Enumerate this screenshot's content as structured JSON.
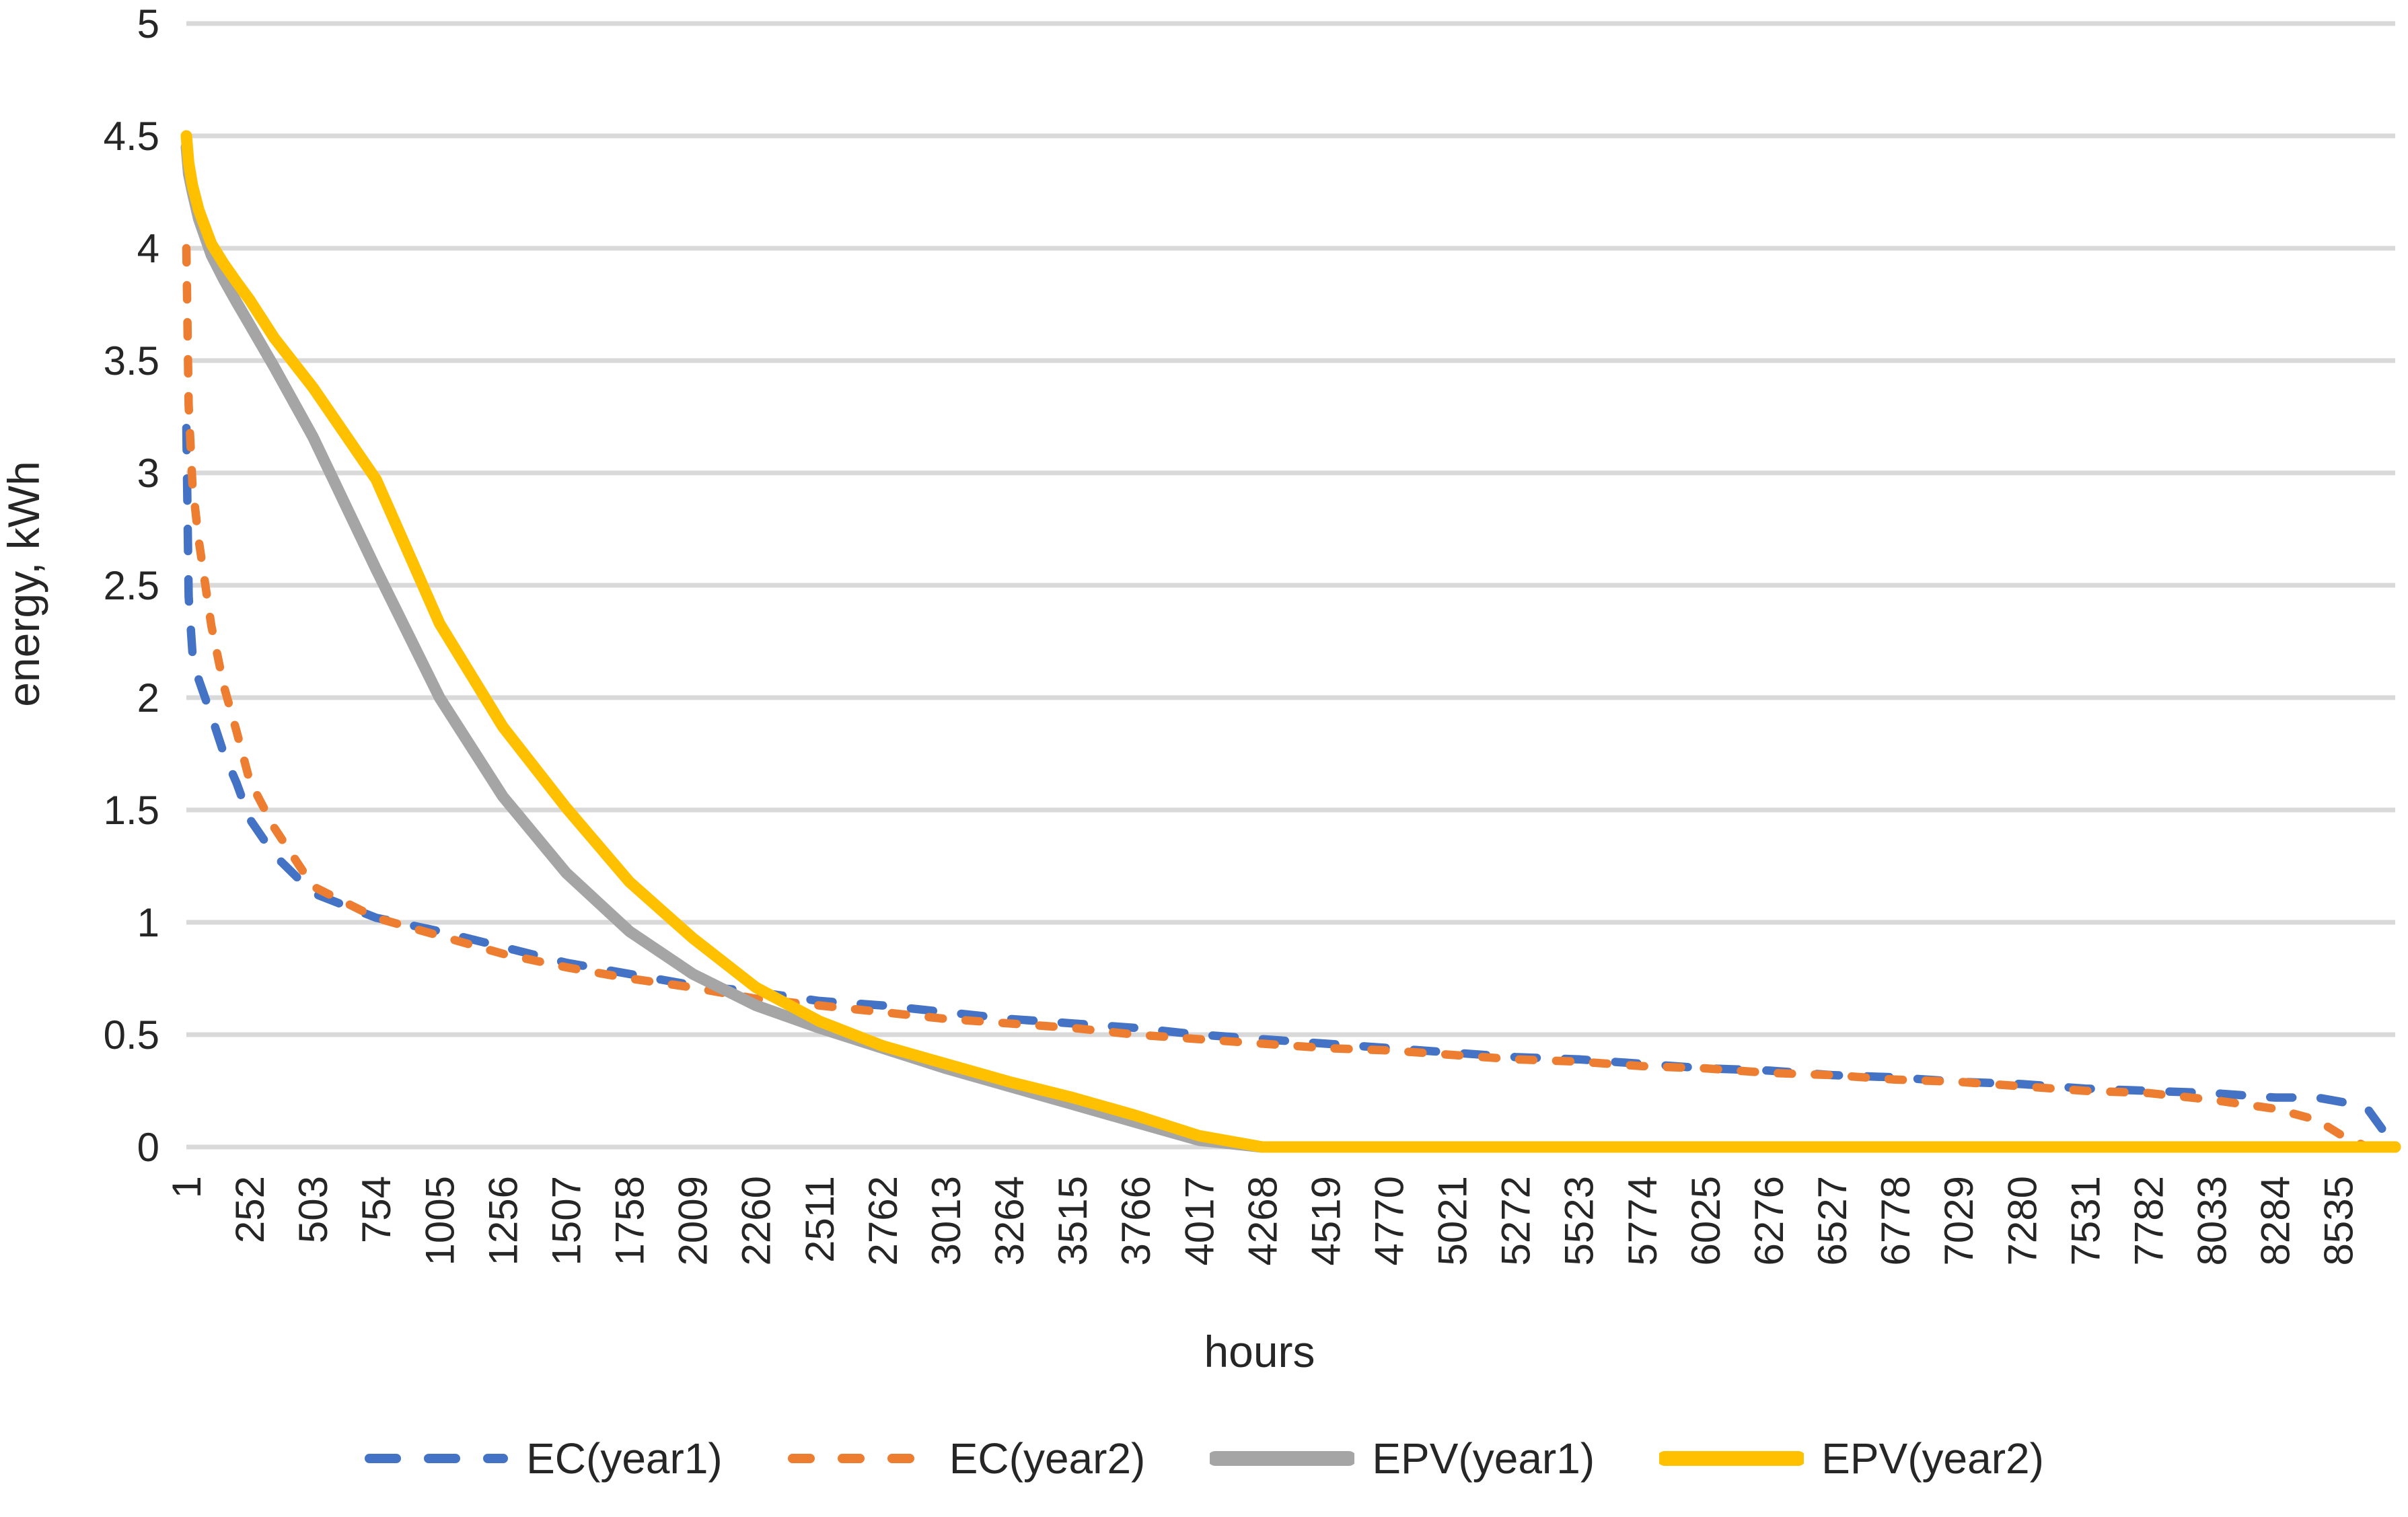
{
  "axes": {
    "y_title": "energy, kWh",
    "x_title": "hours"
  },
  "legend": [
    {
      "label": "EC(year1)",
      "color": "#4472C4",
      "style": "dashed"
    },
    {
      "label": "EC(year2)",
      "color": "#ED7D31",
      "style": "dashed"
    },
    {
      "label": "EPV(year1)",
      "color": "#A5A5A5",
      "style": "solid"
    },
    {
      "label": "EPV(year2)",
      "color": "#FFC000",
      "style": "solid"
    }
  ],
  "colors": {
    "gridline": "#D9D9D9",
    "text": "#262626",
    "background": "#FFFFFF"
  },
  "chart_data": {
    "type": "line",
    "title": "",
    "xlabel": "hours",
    "ylabel": "energy, kWh",
    "ylim": [
      0,
      5
    ],
    "xlim": [
      1,
      8760
    ],
    "grid": "horizontal",
    "legend_position": "bottom",
    "y_ticks": [
      0,
      0.5,
      1,
      1.5,
      2,
      2.5,
      3,
      3.5,
      4,
      4.5,
      5
    ],
    "y_tick_labels": [
      "0",
      "0.5",
      "1",
      "1.5",
      "2",
      "2.5",
      "3",
      "3.5",
      "4",
      "4.5",
      "5"
    ],
    "x_ticks": [
      1,
      252,
      503,
      754,
      1005,
      1256,
      1507,
      1758,
      2009,
      2260,
      2511,
      2762,
      3013,
      3264,
      3515,
      3766,
      4017,
      4268,
      4519,
      4770,
      5021,
      5272,
      5523,
      5774,
      6025,
      6276,
      6527,
      6778,
      7029,
      7280,
      7531,
      7782,
      8033,
      8284,
      8535
    ],
    "x_tick_labels": [
      "1",
      "252",
      "503",
      "754",
      "1005",
      "1256",
      "1507",
      "1758",
      "2009",
      "2260",
      "2511",
      "2762",
      "3013",
      "3264",
      "3515",
      "3766",
      "4017",
      "4268",
      "4519",
      "4770",
      "5021",
      "5272",
      "5523",
      "5774",
      "6025",
      "6276",
      "6527",
      "6778",
      "7029",
      "7280",
      "7531",
      "7782",
      "8033",
      "8284",
      "8535"
    ],
    "x_sample_hours": [
      1,
      10,
      25,
      50,
      100,
      150,
      200,
      252,
      350,
      503,
      754,
      1005,
      1256,
      1507,
      1758,
      2009,
      2260,
      2511,
      2762,
      3013,
      3264,
      3515,
      3766,
      4017,
      4268,
      4519,
      4770,
      5021,
      5272,
      5523,
      5774,
      6025,
      6276,
      6527,
      6778,
      7029,
      7280,
      7531,
      7782,
      8033,
      8284,
      8450,
      8550,
      8650,
      8760
    ],
    "series": [
      {
        "name": "EC(year1)",
        "color": "#4472C4",
        "style": "dashed",
        "y": [
          3.2,
          2.45,
          2.2,
          2.08,
          1.92,
          1.75,
          1.62,
          1.46,
          1.3,
          1.13,
          1.02,
          0.96,
          0.89,
          0.82,
          0.77,
          0.72,
          0.69,
          0.65,
          0.63,
          0.6,
          0.57,
          0.55,
          0.53,
          0.5,
          0.48,
          0.46,
          0.44,
          0.42,
          0.4,
          0.39,
          0.37,
          0.35,
          0.34,
          0.32,
          0.31,
          0.29,
          0.28,
          0.26,
          0.25,
          0.24,
          0.22,
          0.22,
          0.2,
          0.17,
          0.0
        ]
      },
      {
        "name": "EC(year2)",
        "color": "#ED7D31",
        "style": "dashed",
        "y": [
          4.0,
          3.3,
          2.95,
          2.7,
          2.32,
          2.05,
          1.85,
          1.63,
          1.42,
          1.16,
          1.02,
          0.94,
          0.86,
          0.8,
          0.75,
          0.71,
          0.66,
          0.63,
          0.6,
          0.57,
          0.55,
          0.53,
          0.5,
          0.48,
          0.46,
          0.44,
          0.43,
          0.41,
          0.39,
          0.38,
          0.36,
          0.35,
          0.33,
          0.32,
          0.3,
          0.29,
          0.27,
          0.25,
          0.24,
          0.21,
          0.17,
          0.12,
          0.05,
          0.0,
          0.0
        ]
      },
      {
        "name": "EPV(year1)",
        "color": "#A5A5A5",
        "style": "solid",
        "y": [
          4.45,
          4.33,
          4.25,
          4.13,
          3.97,
          3.86,
          3.76,
          3.66,
          3.47,
          3.16,
          2.57,
          2.0,
          1.56,
          1.22,
          0.96,
          0.77,
          0.63,
          0.53,
          0.44,
          0.35,
          0.27,
          0.19,
          0.11,
          0.03,
          0,
          0,
          0,
          0,
          0,
          0,
          0,
          0,
          0,
          0,
          0,
          0,
          0,
          0,
          0,
          0,
          0,
          0,
          0,
          0,
          0
        ]
      },
      {
        "name": "EPV(year2)",
        "color": "#FFC000",
        "style": "solid",
        "y": [
          4.5,
          4.38,
          4.28,
          4.17,
          4.02,
          3.93,
          3.85,
          3.77,
          3.6,
          3.38,
          2.97,
          2.33,
          1.87,
          1.51,
          1.18,
          0.93,
          0.71,
          0.56,
          0.45,
          0.37,
          0.29,
          0.22,
          0.14,
          0.05,
          0,
          0,
          0,
          0,
          0,
          0,
          0,
          0,
          0,
          0,
          0,
          0,
          0,
          0,
          0,
          0,
          0,
          0,
          0,
          0,
          0
        ]
      }
    ]
  }
}
